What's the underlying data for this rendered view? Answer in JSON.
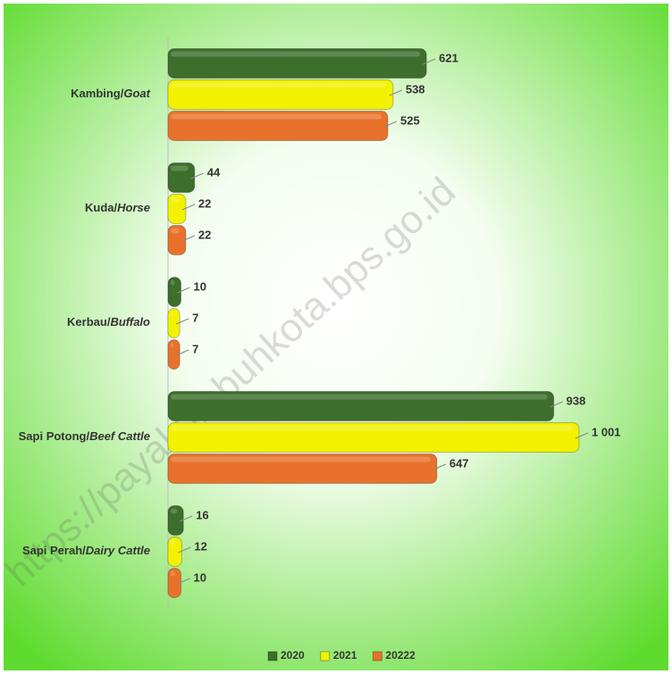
{
  "chart_data": {
    "type": "bar",
    "orientation": "horizontal",
    "categories": [
      "Kambing/Goat",
      "Kuda/Horse",
      "Kerbau/Buffalo",
      "Sapi Potong/Beef Cattle",
      "Sapi Perah/Dairy Cattle"
    ],
    "series": [
      {
        "name": "2020",
        "color": "#3d6e2c",
        "values": [
          621,
          44,
          10,
          938,
          16
        ]
      },
      {
        "name": "2021",
        "color": "#f2f200",
        "values": [
          538,
          22,
          7,
          1001,
          12
        ],
        "value_labels": [
          "538",
          "22",
          "7",
          "1 001",
          "12"
        ]
      },
      {
        "name": "20222",
        "color": "#e8722c",
        "values": [
          525,
          22,
          7,
          647,
          10
        ]
      }
    ],
    "legend": "bottom",
    "watermark": "https://payakumbuhkota.bps.go.id"
  }
}
